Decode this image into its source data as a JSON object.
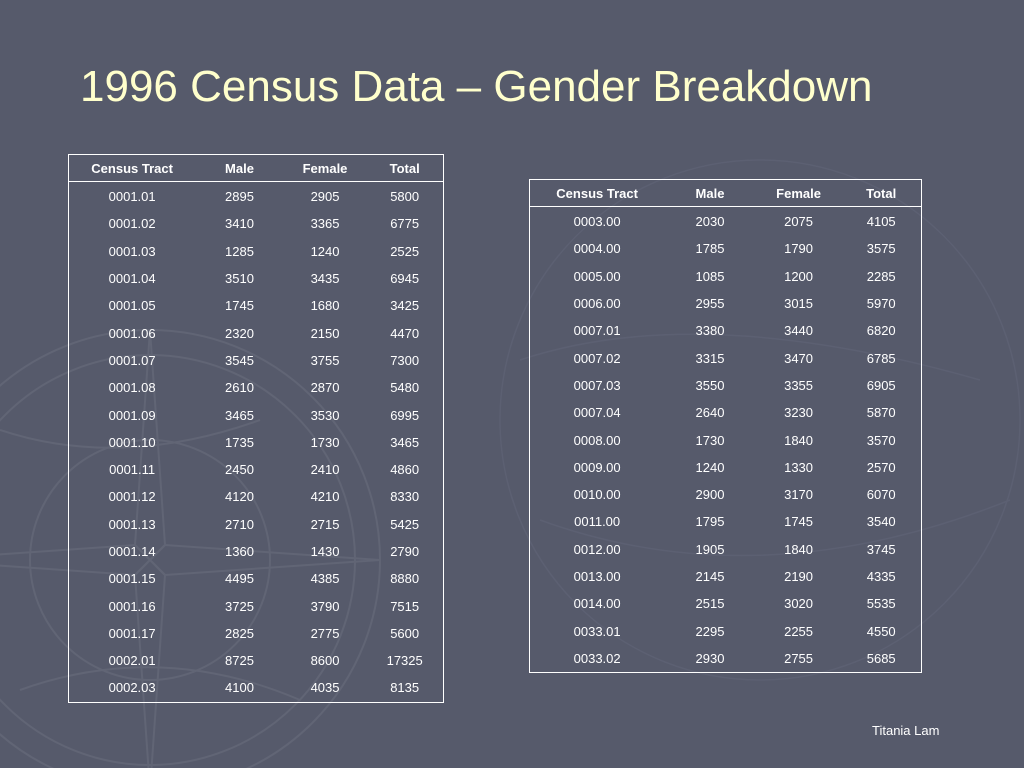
{
  "title": "1996 Census Data – Gender Breakdown",
  "author": "Titania Lam",
  "colors": {
    "background": "#565a6b",
    "title": "#ffffcc",
    "text": "#ffffff"
  },
  "headers": [
    "Census Tract",
    "Male",
    "Female",
    "Total"
  ],
  "table_left": {
    "rows": [
      [
        "0001.01",
        "2895",
        "2905",
        "5800"
      ],
      [
        "0001.02",
        "3410",
        "3365",
        "6775"
      ],
      [
        "0001.03",
        "1285",
        "1240",
        "2525"
      ],
      [
        "0001.04",
        "3510",
        "3435",
        "6945"
      ],
      [
        "0001.05",
        "1745",
        "1680",
        "3425"
      ],
      [
        "0001.06",
        "2320",
        "2150",
        "4470"
      ],
      [
        "0001.07",
        "3545",
        "3755",
        "7300"
      ],
      [
        "0001.08",
        "2610",
        "2870",
        "5480"
      ],
      [
        "0001.09",
        "3465",
        "3530",
        "6995"
      ],
      [
        "0001.10",
        "1735",
        "1730",
        "3465"
      ],
      [
        "0001.11",
        "2450",
        "2410",
        "4860"
      ],
      [
        "0001.12",
        "4120",
        "4210",
        "8330"
      ],
      [
        "0001.13",
        "2710",
        "2715",
        "5425"
      ],
      [
        "0001.14",
        "1360",
        "1430",
        "2790"
      ],
      [
        "0001.15",
        "4495",
        "4385",
        "8880"
      ],
      [
        "0001.16",
        "3725",
        "3790",
        "7515"
      ],
      [
        "0001.17",
        "2825",
        "2775",
        "5600"
      ],
      [
        "0002.01",
        "8725",
        "8600",
        "17325"
      ],
      [
        "0002.03",
        "4100",
        "4035",
        "8135"
      ]
    ]
  },
  "table_right": {
    "rows": [
      [
        "0003.00",
        "2030",
        "2075",
        "4105"
      ],
      [
        "0004.00",
        "1785",
        "1790",
        "3575"
      ],
      [
        "0005.00",
        "1085",
        "1200",
        "2285"
      ],
      [
        "0006.00",
        "2955",
        "3015",
        "5970"
      ],
      [
        "0007.01",
        "3380",
        "3440",
        "6820"
      ],
      [
        "0007.02",
        "3315",
        "3470",
        "6785"
      ],
      [
        "0007.03",
        "3550",
        "3355",
        "6905"
      ],
      [
        "0007.04",
        "2640",
        "3230",
        "5870"
      ],
      [
        "0008.00",
        "1730",
        "1840",
        "3570"
      ],
      [
        "0009.00",
        "1240",
        "1330",
        "2570"
      ],
      [
        "0010.00",
        "2900",
        "3170",
        "6070"
      ],
      [
        "0011.00",
        "1795",
        "1745",
        "3540"
      ],
      [
        "0012.00",
        "1905",
        "1840",
        "3745"
      ],
      [
        "0013.00",
        "2145",
        "2190",
        "4335"
      ],
      [
        "0014.00",
        "2515",
        "3020",
        "5535"
      ],
      [
        "0033.01",
        "2295",
        "2255",
        "4550"
      ],
      [
        "0033.02",
        "2930",
        "2755",
        "5685"
      ]
    ]
  }
}
